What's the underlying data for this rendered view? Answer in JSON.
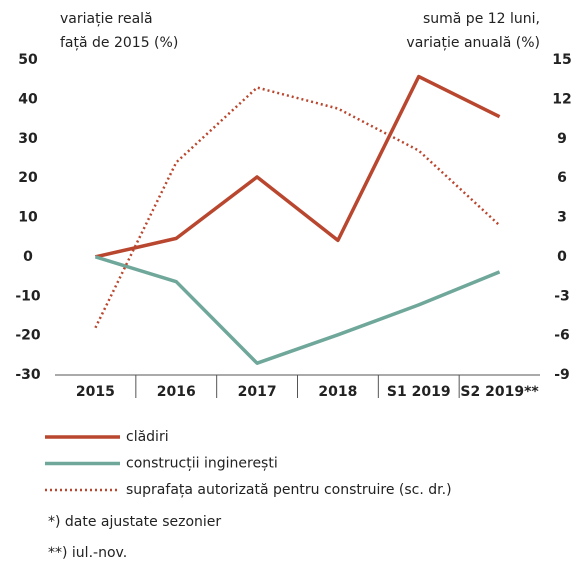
{
  "chart_data": {
    "type": "line",
    "y_label": [
      "variație reală",
      "față de 2015  (%)"
    ],
    "y2_label": [
      "sumă pe 12 luni,",
      "variație anuală (%)"
    ],
    "categories": [
      "2015",
      "2016",
      "2017",
      "2018",
      "S1 2019",
      "S2 2019**"
    ],
    "ylim": [
      -30,
      50
    ],
    "yticks": [
      50,
      40,
      30,
      20,
      10,
      0,
      -10,
      -20,
      -30
    ],
    "y2lim": [
      -9,
      15
    ],
    "y2ticks": [
      15,
      12,
      9,
      6,
      3,
      0,
      -3,
      -6,
      -9
    ],
    "grid": false,
    "series": [
      {
        "name": "clădiri",
        "color": "#b9472f",
        "style": "solid",
        "values": [
          0,
          4.7,
          20.3,
          4.2,
          45.8,
          35.6
        ]
      },
      {
        "name": "construcții inginerești",
        "color": "#6fa89a",
        "style": "solid",
        "values": [
          0,
          -6.3,
          -27,
          -19.8,
          -12.2,
          -3.8
        ]
      },
      {
        "name": "suprafața autorizată pentru construire (sc. dr.)",
        "color": "#b9472f",
        "style": "dotted",
        "axis": "y2",
        "values": [
          -5.4,
          7.2,
          12.9,
          11.3,
          8.1,
          2.4
        ]
      }
    ],
    "notes": [
      "*) date ajustate sezonier",
      "**) iul.-nov."
    ]
  }
}
